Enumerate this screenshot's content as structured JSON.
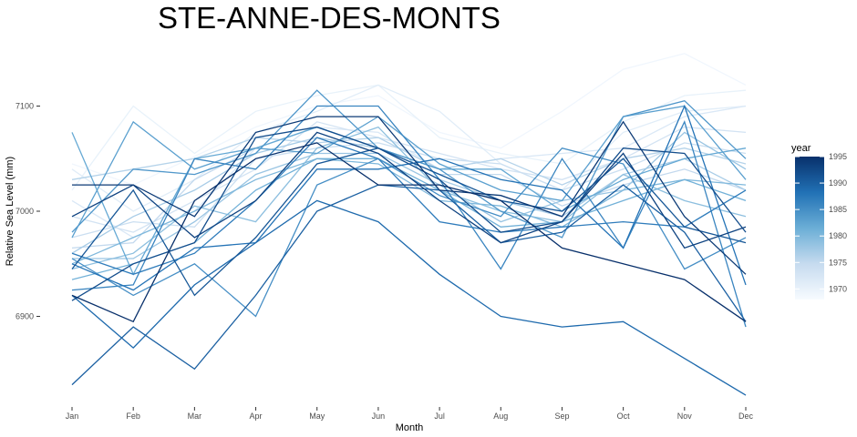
{
  "chart_data": {
    "type": "line",
    "title": "STE-ANNE-DES-MONTS",
    "xlabel": "Month",
    "ylabel": "Relative Sea Level (mm)",
    "categories": [
      "Jan",
      "Feb",
      "Mar",
      "Apr",
      "May",
      "Jun",
      "Jul",
      "Aug",
      "Sep",
      "Oct",
      "Nov",
      "Dec"
    ],
    "y_ticks": [
      "6900",
      "7000",
      "7100"
    ],
    "ylim": [
      6820,
      7160
    ],
    "grid": false,
    "legend": {
      "title": "year",
      "position": "right",
      "type": "colorbar",
      "range": [
        1968,
        1995
      ],
      "ticks": [
        "1970",
        "1975",
        "1980",
        "1985",
        "1990",
        "1995"
      ],
      "color_low": "#f7fbff",
      "color_high": "#08306b"
    },
    "series": [
      {
        "year": 1969,
        "values": [
          7045,
          7025,
          7052,
          7080,
          7100,
          7110,
          7075,
          7060,
          7095,
          7135,
          7150,
          7120
        ]
      },
      {
        "year": 1970,
        "values": [
          7020,
          7100,
          7055,
          7095,
          7110,
          7120,
          7070,
          7055,
          7045,
          7085,
          7110,
          7115
        ]
      },
      {
        "year": 1971,
        "values": [
          7040,
          7000,
          7030,
          7075,
          7095,
          7120,
          7095,
          7045,
          7020,
          7075,
          7095,
          7100
        ]
      },
      {
        "year": 1972,
        "values": [
          7010,
          6975,
          7000,
          7060,
          7080,
          7075,
          7040,
          7050,
          7055,
          7060,
          7090,
          7100
        ]
      },
      {
        "year": 1973,
        "values": [
          6995,
          6980,
          7010,
          7040,
          7085,
          7070,
          7055,
          7040,
          7030,
          7050,
          7080,
          7075
        ]
      },
      {
        "year": 1974,
        "values": [
          6975,
          6990,
          6985,
          7050,
          7060,
          7065,
          7050,
          7045,
          7020,
          7040,
          7065,
          7055
        ]
      },
      {
        "year": 1975,
        "values": [
          6965,
          6970,
          7030,
          7060,
          7080,
          7060,
          7035,
          7035,
          7005,
          7025,
          7040,
          7020
        ]
      },
      {
        "year": 1976,
        "values": [
          7030,
          7040,
          7050,
          7070,
          7065,
          7070,
          7040,
          7050,
          7025,
          7050,
          7060,
          7045
        ]
      },
      {
        "year": 1977,
        "values": [
          6960,
          6995,
          7020,
          7055,
          7070,
          7060,
          7030,
          7010,
          6995,
          7035,
          7050,
          7020
        ]
      },
      {
        "year": 1978,
        "values": [
          6955,
          6955,
          6990,
          7035,
          7055,
          7055,
          7025,
          6990,
          7010,
          7020,
          7075,
          7040
        ]
      },
      {
        "year": 1979,
        "values": [
          6945,
          6960,
          7005,
          6990,
          7060,
          7080,
          7020,
          7000,
          6990,
          7035,
          7010,
          6995
        ]
      },
      {
        "year": 1980,
        "values": [
          6950,
          6975,
          7000,
          7030,
          7050,
          7045,
          7010,
          7005,
          6985,
          7020,
          7030,
          7025
        ]
      },
      {
        "year": 1981,
        "values": [
          6935,
          6950,
          6970,
          7020,
          7050,
          7050,
          7020,
          6985,
          6990,
          7010,
          7030,
          7010
        ]
      },
      {
        "year": 1982,
        "values": [
          7075,
          6940,
          7050,
          7060,
          7080,
          7060,
          7040,
          7040,
          7000,
          7030,
          7050,
          7060
        ]
      },
      {
        "year": 1983,
        "values": [
          6975,
          7085,
          7040,
          7060,
          7055,
          7090,
          7045,
          7020,
          7010,
          7090,
          7100,
          7030
        ]
      },
      {
        "year": 1984,
        "values": [
          6980,
          7040,
          7035,
          7055,
          7115,
          7060,
          7040,
          7000,
          6975,
          7090,
          7105,
          7050
        ]
      },
      {
        "year": 1985,
        "values": [
          6955,
          6920,
          6950,
          6900,
          7025,
          7050,
          7015,
          6995,
          7060,
          7045,
          6945,
          6975
        ]
      },
      {
        "year": 1986,
        "values": [
          6925,
          6930,
          7050,
          7040,
          7100,
          7100,
          7030,
          6945,
          7050,
          6965,
          7085,
          6890
        ]
      },
      {
        "year": 1987,
        "values": [
          6960,
          6940,
          6960,
          7010,
          7070,
          7050,
          6990,
          6980,
          6985,
          6990,
          6985,
          7020
        ]
      },
      {
        "year": 1988,
        "values": [
          6950,
          6925,
          6965,
          6970,
          7040,
          7040,
          7050,
          7030,
          7020,
          6965,
          7100,
          6930
        ]
      },
      {
        "year": 1989,
        "values": [
          6920,
          6870,
          6930,
          6970,
          7010,
          6990,
          6940,
          6900,
          6890,
          6895,
          6860,
          6825
        ]
      },
      {
        "year": 1990,
        "values": [
          6835,
          6890,
          6850,
          6920,
          7000,
          7025,
          7020,
          6970,
          6980,
          7025,
          6980,
          6895
        ]
      },
      {
        "year": 1991,
        "values": [
          6945,
          7020,
          6920,
          6975,
          7045,
          7060,
          7035,
          7010,
          7000,
          7050,
          6985,
          6970
        ]
      },
      {
        "year": 1992,
        "values": [
          6915,
          6950,
          6970,
          7070,
          7080,
          7060,
          7030,
          6980,
          6990,
          7060,
          7055,
          6980
        ]
      },
      {
        "year": 1993,
        "values": [
          6995,
          7025,
          6975,
          7010,
          7075,
          7055,
          7010,
          6970,
          6990,
          7055,
          6965,
          6985
        ]
      },
      {
        "year": 1994,
        "values": [
          7025,
          7025,
          6995,
          7075,
          7090,
          7090,
          7020,
          7015,
          6995,
          7085,
          6995,
          6940
        ]
      },
      {
        "year": 1995,
        "values": [
          6920,
          6895,
          7010,
          7050,
          7065,
          7025,
          7025,
          7010,
          6965,
          6950,
          6935,
          6895
        ]
      }
    ]
  }
}
